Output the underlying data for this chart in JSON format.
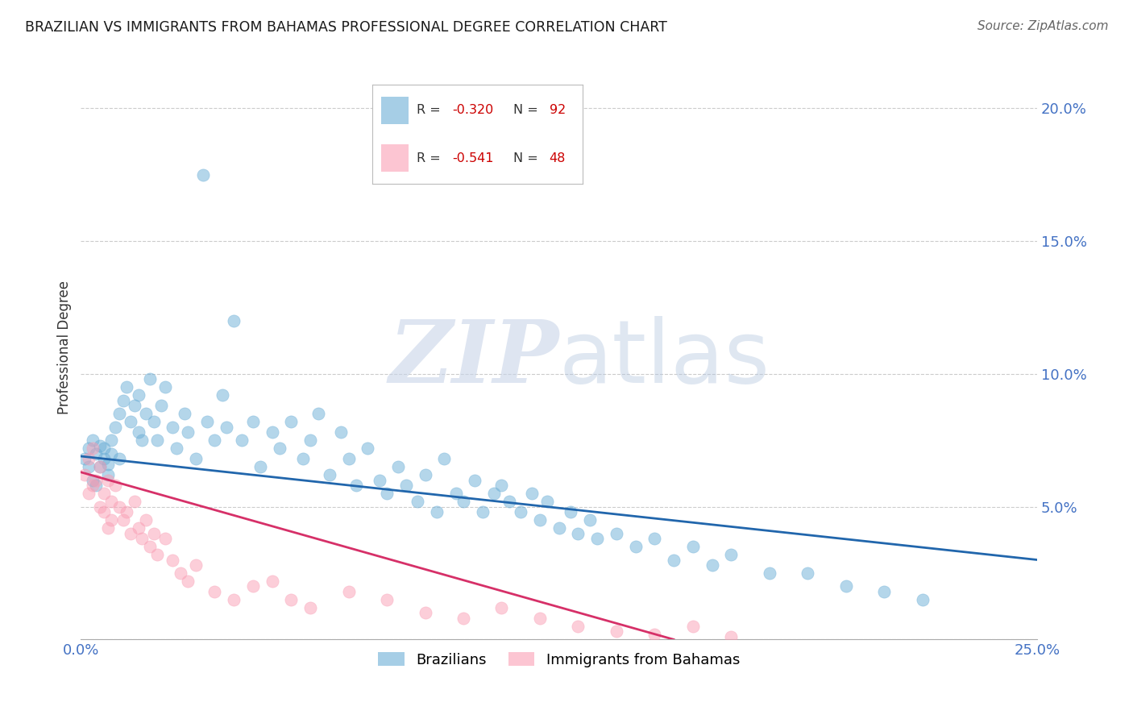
{
  "title": "BRAZILIAN VS IMMIGRANTS FROM BAHAMAS PROFESSIONAL DEGREE CORRELATION CHART",
  "source": "Source: ZipAtlas.com",
  "ylabel": "Professional Degree",
  "xlim": [
    0.0,
    0.25
  ],
  "ylim": [
    0.0,
    0.22
  ],
  "yticks": [
    0.0,
    0.05,
    0.1,
    0.15,
    0.2
  ],
  "yticklabels": [
    "",
    "5.0%",
    "10.0%",
    "15.0%",
    "20.0%"
  ],
  "xticks": [
    0.0,
    0.05,
    0.1,
    0.15,
    0.2,
    0.25
  ],
  "xticklabels": [
    "0.0%",
    "",
    "",
    "",
    "",
    "25.0%"
  ],
  "grid_color": "#cccccc",
  "background_color": "#ffffff",
  "blue_color": "#6baed6",
  "blue_line_color": "#2166ac",
  "pink_color": "#fa9fb5",
  "pink_line_color": "#d63068",
  "blue_label": "Brazilians",
  "pink_label": "Immigrants from Bahamas",
  "legend_R1": "-0.320",
  "legend_N1": "92",
  "legend_R2": "-0.541",
  "legend_N2": "48",
  "blue_line_x": [
    0.0,
    0.25
  ],
  "blue_line_y": [
    0.069,
    0.03
  ],
  "pink_line_x": [
    0.0,
    0.155
  ],
  "pink_line_y": [
    0.063,
    0.0
  ],
  "blue_x": [
    0.001,
    0.002,
    0.002,
    0.003,
    0.003,
    0.004,
    0.004,
    0.005,
    0.005,
    0.006,
    0.006,
    0.007,
    0.007,
    0.008,
    0.008,
    0.009,
    0.01,
    0.01,
    0.011,
    0.012,
    0.013,
    0.014,
    0.015,
    0.015,
    0.016,
    0.017,
    0.018,
    0.019,
    0.02,
    0.021,
    0.022,
    0.024,
    0.025,
    0.027,
    0.028,
    0.03,
    0.032,
    0.033,
    0.035,
    0.037,
    0.038,
    0.04,
    0.042,
    0.045,
    0.047,
    0.05,
    0.052,
    0.055,
    0.058,
    0.06,
    0.062,
    0.065,
    0.068,
    0.07,
    0.072,
    0.075,
    0.078,
    0.08,
    0.083,
    0.085,
    0.088,
    0.09,
    0.093,
    0.095,
    0.098,
    0.1,
    0.103,
    0.105,
    0.108,
    0.11,
    0.112,
    0.115,
    0.118,
    0.12,
    0.122,
    0.125,
    0.128,
    0.13,
    0.133,
    0.135,
    0.14,
    0.145,
    0.15,
    0.155,
    0.16,
    0.165,
    0.17,
    0.18,
    0.19,
    0.2,
    0.21,
    0.22
  ],
  "blue_y": [
    0.068,
    0.072,
    0.065,
    0.075,
    0.06,
    0.07,
    0.058,
    0.073,
    0.065,
    0.068,
    0.072,
    0.062,
    0.066,
    0.07,
    0.075,
    0.08,
    0.085,
    0.068,
    0.09,
    0.095,
    0.082,
    0.088,
    0.078,
    0.092,
    0.075,
    0.085,
    0.098,
    0.082,
    0.075,
    0.088,
    0.095,
    0.08,
    0.072,
    0.085,
    0.078,
    0.068,
    0.175,
    0.082,
    0.075,
    0.092,
    0.08,
    0.12,
    0.075,
    0.082,
    0.065,
    0.078,
    0.072,
    0.082,
    0.068,
    0.075,
    0.085,
    0.062,
    0.078,
    0.068,
    0.058,
    0.072,
    0.06,
    0.055,
    0.065,
    0.058,
    0.052,
    0.062,
    0.048,
    0.068,
    0.055,
    0.052,
    0.06,
    0.048,
    0.055,
    0.058,
    0.052,
    0.048,
    0.055,
    0.045,
    0.052,
    0.042,
    0.048,
    0.04,
    0.045,
    0.038,
    0.04,
    0.035,
    0.038,
    0.03,
    0.035,
    0.028,
    0.032,
    0.025,
    0.025,
    0.02,
    0.018,
    0.015
  ],
  "pink_x": [
    0.001,
    0.002,
    0.002,
    0.003,
    0.003,
    0.004,
    0.005,
    0.005,
    0.006,
    0.006,
    0.007,
    0.007,
    0.008,
    0.008,
    0.009,
    0.01,
    0.011,
    0.012,
    0.013,
    0.014,
    0.015,
    0.016,
    0.017,
    0.018,
    0.019,
    0.02,
    0.022,
    0.024,
    0.026,
    0.028,
    0.03,
    0.035,
    0.04,
    0.045,
    0.05,
    0.055,
    0.06,
    0.07,
    0.08,
    0.09,
    0.1,
    0.11,
    0.12,
    0.13,
    0.14,
    0.15,
    0.16,
    0.17
  ],
  "pink_y": [
    0.062,
    0.055,
    0.068,
    0.058,
    0.072,
    0.06,
    0.05,
    0.065,
    0.055,
    0.048,
    0.06,
    0.042,
    0.052,
    0.045,
    0.058,
    0.05,
    0.045,
    0.048,
    0.04,
    0.052,
    0.042,
    0.038,
    0.045,
    0.035,
    0.04,
    0.032,
    0.038,
    0.03,
    0.025,
    0.022,
    0.028,
    0.018,
    0.015,
    0.02,
    0.022,
    0.015,
    0.012,
    0.018,
    0.015,
    0.01,
    0.008,
    0.012,
    0.008,
    0.005,
    0.003,
    0.002,
    0.005,
    0.001
  ]
}
